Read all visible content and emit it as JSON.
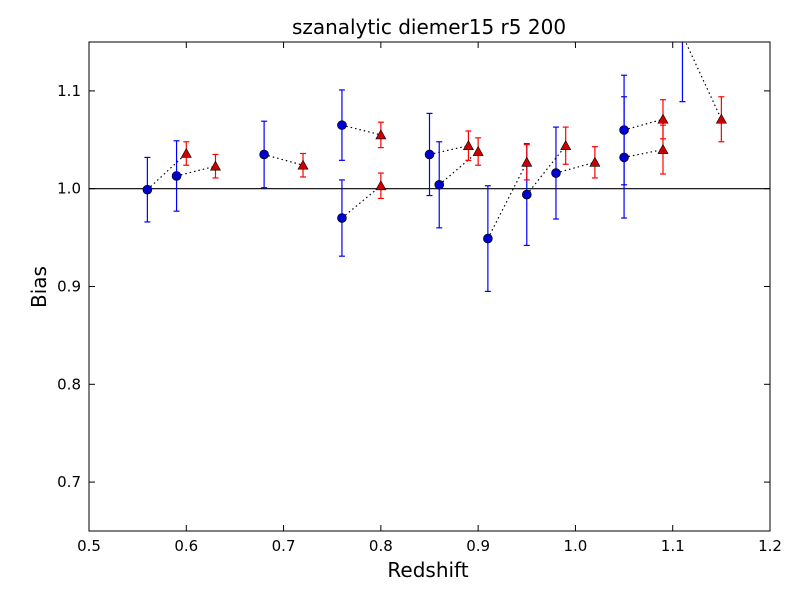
{
  "chart_data": {
    "type": "scatter",
    "title": "szanalytic diemer15 r5 200",
    "xlabel": "Redshift",
    "ylabel": "Bias",
    "xlim": [
      0.5,
      1.2
    ],
    "ylim": [
      0.65,
      1.15
    ],
    "xticks": [
      "0.5",
      "0.6",
      "0.7",
      "0.8",
      "0.9",
      "1.0",
      "1.1",
      "1.2"
    ],
    "yticks": [
      "0.7",
      "0.8",
      "0.9",
      "1.0",
      "1.1"
    ],
    "reference_line": 1.0,
    "grid": false,
    "series": [
      {
        "marker": "circle",
        "color": "#0000cc",
        "errcolor": "#0000ff",
        "points": [
          {
            "x": 0.56,
            "y": 0.999,
            "err": 0.033
          },
          {
            "x": 0.59,
            "y": 1.013,
            "err": 0.036
          },
          {
            "x": 0.68,
            "y": 1.035,
            "err": 0.034
          },
          {
            "x": 0.76,
            "y": 1.065,
            "err": 0.036
          },
          {
            "x": 0.76,
            "y": 0.97,
            "err": 0.039
          },
          {
            "x": 0.85,
            "y": 1.035,
            "err": 0.042
          },
          {
            "x": 0.86,
            "y": 1.004,
            "err": 0.044
          },
          {
            "x": 0.91,
            "y": 0.949,
            "err": 0.054
          },
          {
            "x": 0.95,
            "y": 0.994,
            "err": 0.052
          },
          {
            "x": 0.98,
            "y": 1.016,
            "err": 0.047
          },
          {
            "x": 1.05,
            "y": 1.06,
            "err": 0.056
          },
          {
            "x": 1.05,
            "y": 1.032,
            "err": 0.062
          },
          {
            "x": 1.11,
            "y": 1.157,
            "err": 0.068
          }
        ]
      },
      {
        "marker": "triangle",
        "color": "#cc0000",
        "errcolor": "#ff0000",
        "points": [
          {
            "x": 0.6,
            "y": 1.036,
            "err": 0.012
          },
          {
            "x": 0.63,
            "y": 1.023,
            "err": 0.012
          },
          {
            "x": 0.72,
            "y": 1.024,
            "err": 0.012
          },
          {
            "x": 0.8,
            "y": 1.055,
            "err": 0.013
          },
          {
            "x": 0.8,
            "y": 1.003,
            "err": 0.013
          },
          {
            "x": 0.89,
            "y": 1.044,
            "err": 0.015
          },
          {
            "x": 0.9,
            "y": 1.038,
            "err": 0.014
          },
          {
            "x": 0.95,
            "y": 1.027,
            "err": 0.018
          },
          {
            "x": 0.99,
            "y": 1.044,
            "err": 0.019
          },
          {
            "x": 1.02,
            "y": 1.027,
            "err": 0.016
          },
          {
            "x": 1.09,
            "y": 1.071,
            "err": 0.02
          },
          {
            "x": 1.09,
            "y": 1.04,
            "err": 0.025
          },
          {
            "x": 1.15,
            "y": 1.071,
            "err": 0.023
          }
        ]
      }
    ],
    "dotted_segments": [
      [
        [
          0.56,
          0.999
        ],
        [
          0.6,
          1.036
        ]
      ],
      [
        [
          0.59,
          1.013
        ],
        [
          0.63,
          1.023
        ]
      ],
      [
        [
          0.68,
          1.035
        ],
        [
          0.72,
          1.024
        ]
      ],
      [
        [
          0.76,
          1.065
        ],
        [
          0.8,
          1.055
        ]
      ],
      [
        [
          0.76,
          0.97
        ],
        [
          0.8,
          1.003
        ]
      ],
      [
        [
          0.85,
          1.035
        ],
        [
          0.89,
          1.044
        ]
      ],
      [
        [
          0.86,
          1.004
        ],
        [
          0.9,
          1.038
        ]
      ],
      [
        [
          0.91,
          0.949
        ],
        [
          0.95,
          1.027
        ]
      ],
      [
        [
          0.95,
          0.994
        ],
        [
          0.99,
          1.044
        ]
      ],
      [
        [
          0.98,
          1.016
        ],
        [
          1.02,
          1.027
        ]
      ],
      [
        [
          1.05,
          1.06
        ],
        [
          1.09,
          1.071
        ]
      ],
      [
        [
          1.05,
          1.032
        ],
        [
          1.09,
          1.04
        ]
      ],
      [
        [
          1.11,
          1.157
        ],
        [
          1.15,
          1.071
        ]
      ]
    ]
  }
}
